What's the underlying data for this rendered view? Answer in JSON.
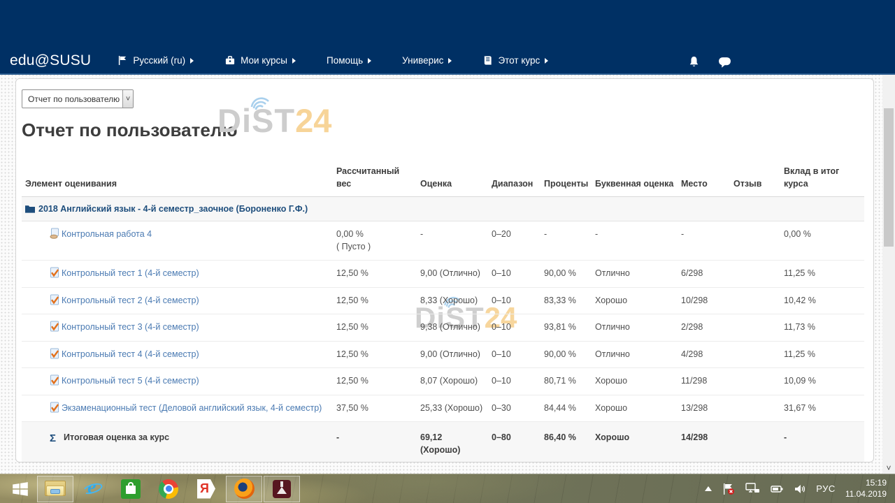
{
  "navbar": {
    "brand": "edu@SUSU",
    "items": [
      {
        "label": "Русский (ru)",
        "icon": "flag-icon"
      },
      {
        "label": "Мои курсы",
        "icon": "briefcase-icon"
      },
      {
        "label": "Помощь",
        "icon": null
      },
      {
        "label": "Универис",
        "icon": null
      },
      {
        "label": "Этот курс",
        "icon": "book-icon"
      }
    ],
    "right_icons": [
      "notifications-bell-icon",
      "messages-icon"
    ]
  },
  "report": {
    "selector_value": "Отчет по пользователю",
    "title": "Отчет по пользователю"
  },
  "watermark": {
    "gray": "DiST",
    "orange": "24"
  },
  "colors": {
    "header_navy": "#003064",
    "link_blue": "#4a7ab2",
    "category_navy": "#1d4d7c",
    "watermark_gray": "#cdcdcd",
    "watermark_orange": "#f7d498"
  },
  "table": {
    "headers": [
      "Элемент оценивания",
      "Рассчитанный вес",
      "Оценка",
      "Диапазон",
      "Проценты",
      "Буквенная оценка",
      "Место",
      "Отзыв",
      "Вклад в итог курса"
    ],
    "category": "2018 Английский язык - 4-й семестр_заочное (Бороненко Г.Ф.)",
    "rows": [
      {
        "icon": "assignment-icon",
        "name": "Контрольная работа 4",
        "weight": "0,00 %",
        "weight_note": "( Пусто )",
        "grade": "-",
        "range": "0–20",
        "percent": "-",
        "letter": "-",
        "rank": "-",
        "feedback": "",
        "contribution": "0,00 %"
      },
      {
        "icon": "quiz-icon",
        "name": "Контрольный тест 1 (4-й семестр)",
        "weight": "12,50 %",
        "weight_note": "",
        "grade": "9,00 (Отлично)",
        "range": "0–10",
        "percent": "90,00 %",
        "letter": "Отлично",
        "rank": "6/298",
        "feedback": "",
        "contribution": "11,25 %"
      },
      {
        "icon": "quiz-icon",
        "name": "Контрольный тест 2 (4-й семестр)",
        "weight": "12,50 %",
        "weight_note": "",
        "grade": "8,33 (Хорошо)",
        "range": "0–10",
        "percent": "83,33 %",
        "letter": "Хорошо",
        "rank": "10/298",
        "feedback": "",
        "contribution": "10,42 %"
      },
      {
        "icon": "quiz-icon",
        "name": "Контрольный тест 3 (4-й семестр)",
        "weight": "12,50 %",
        "weight_note": "",
        "grade": "9,38 (Отлично)",
        "range": "0–10",
        "percent": "93,81 %",
        "letter": "Отлично",
        "rank": "2/298",
        "feedback": "",
        "contribution": "11,73 %"
      },
      {
        "icon": "quiz-icon",
        "name": "Контрольный тест 4 (4-й семестр)",
        "weight": "12,50 %",
        "weight_note": "",
        "grade": "9,00 (Отлично)",
        "range": "0–10",
        "percent": "90,00 %",
        "letter": "Отлично",
        "rank": "4/298",
        "feedback": "",
        "contribution": "11,25 %"
      },
      {
        "icon": "quiz-icon",
        "name": "Контрольный тест 5 (4-й семестр)",
        "weight": "12,50 %",
        "weight_note": "",
        "grade": "8,07 (Хорошо)",
        "range": "0–10",
        "percent": "80,71 %",
        "letter": "Хорошо",
        "rank": "11/298",
        "feedback": "",
        "contribution": "10,09 %"
      },
      {
        "icon": "quiz-icon",
        "name": "Экзаменационный тест (Деловой английский язык, 4-й семестр)",
        "weight": "37,50 %",
        "weight_note": "",
        "grade": "25,33 (Хорошо)",
        "range": "0–30",
        "percent": "84,44 %",
        "letter": "Хорошо",
        "rank": "13/298",
        "feedback": "",
        "contribution": "31,67 %"
      }
    ],
    "total": {
      "name": "Итоговая оценка за курс",
      "sigma": "Σ",
      "weight": "-",
      "grade": "69,12",
      "grade_note": "(Хорошо)",
      "range": "0–80",
      "percent": "86,40 %",
      "letter": "Хорошо",
      "rank": "14/298",
      "feedback": "",
      "contribution": "-"
    }
  },
  "taskbar": {
    "apps": [
      "start-button",
      "file-explorer",
      "internet-explorer",
      "windows-store",
      "chrome",
      "yandex-browser",
      "firefox",
      "download-manager"
    ],
    "tray": {
      "language": "РУС",
      "time": "15:19",
      "date": "11.04.2019"
    }
  }
}
